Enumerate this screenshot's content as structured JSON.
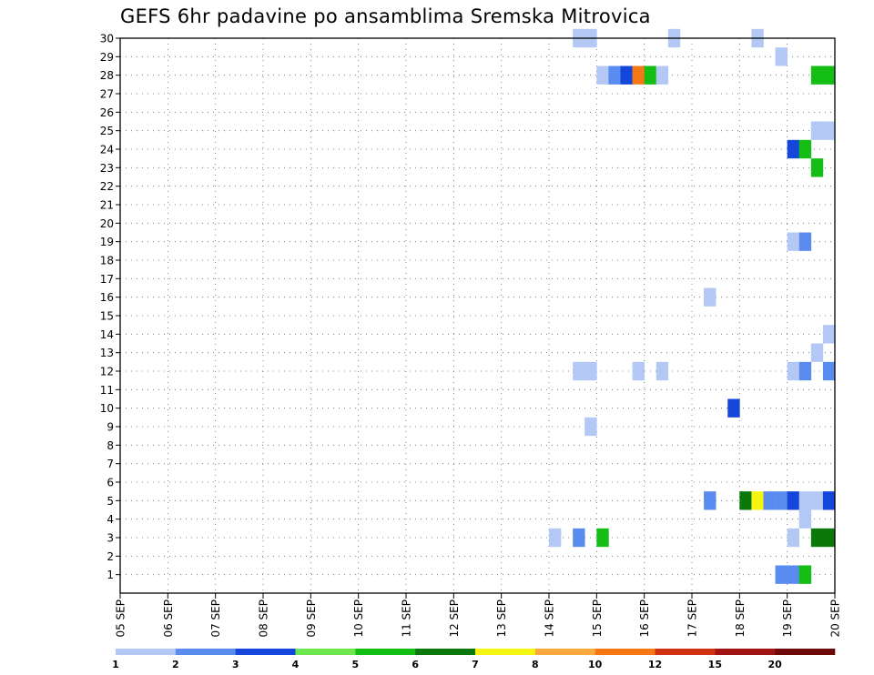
{
  "chart_data": {
    "type": "heatmap",
    "title": "GEFS 6hr padavine po ansamblima Sremska Mitrovica",
    "xlabel": "",
    "ylabel": "",
    "x_ticks": [
      "05 SEP",
      "06 SEP",
      "07 SEP",
      "08 SEP",
      "09 SEP",
      "10 SEP",
      "11 SEP",
      "12 SEP",
      "13 SEP",
      "14 SEP",
      "15 SEP",
      "16 SEP",
      "17 SEP",
      "18 SEP",
      "19 SEP",
      "20 SEP"
    ],
    "x_range_days": [
      0,
      15
    ],
    "y_ticks": [
      1,
      2,
      3,
      4,
      5,
      6,
      7,
      8,
      9,
      10,
      11,
      12,
      13,
      14,
      15,
      16,
      17,
      18,
      19,
      20,
      21,
      22,
      23,
      24,
      25,
      26,
      27,
      28,
      29,
      30
    ],
    "y_range": [
      0,
      30
    ],
    "grid": true,
    "legend_placement": "bottom",
    "legend": {
      "labels": [
        "1",
        "2",
        "3",
        "4",
        "5",
        "6",
        "7",
        "8",
        "10",
        "12",
        "15",
        "20"
      ],
      "colors": [
        "#b4c8f5",
        "#5a8cf0",
        "#1446dc",
        "#6ee650",
        "#14be14",
        "#0a780a",
        "#f5f514",
        "#faaa3c",
        "#f57814",
        "#d23214",
        "#a01414",
        "#6e0a0a"
      ]
    },
    "cells": [
      {
        "day": 9.5,
        "member": 30,
        "v": 1
      },
      {
        "day": 9.75,
        "member": 30,
        "v": 1
      },
      {
        "day": 11.5,
        "member": 30,
        "v": 1
      },
      {
        "day": 13.25,
        "member": 30,
        "v": 1
      },
      {
        "day": 13.75,
        "member": 29,
        "v": 1
      },
      {
        "day": 10.0,
        "member": 28,
        "v": 1
      },
      {
        "day": 10.25,
        "member": 28,
        "v": 2
      },
      {
        "day": 10.5,
        "member": 28,
        "v": 3
      },
      {
        "day": 10.75,
        "member": 28,
        "v": 10
      },
      {
        "day": 11.0,
        "member": 28,
        "v": 5
      },
      {
        "day": 11.25,
        "member": 28,
        "v": 1
      },
      {
        "day": 14.5,
        "member": 28,
        "v": 5
      },
      {
        "day": 14.75,
        "member": 28,
        "v": 5
      },
      {
        "day": 14.5,
        "member": 25,
        "v": 1
      },
      {
        "day": 14.75,
        "member": 25,
        "v": 1
      },
      {
        "day": 14.0,
        "member": 24,
        "v": 3
      },
      {
        "day": 14.25,
        "member": 24,
        "v": 5
      },
      {
        "day": 14.5,
        "member": 23,
        "v": 5
      },
      {
        "day": 14.0,
        "member": 19,
        "v": 1
      },
      {
        "day": 14.25,
        "member": 19,
        "v": 2
      },
      {
        "day": 12.25,
        "member": 16,
        "v": 1
      },
      {
        "day": 14.75,
        "member": 14,
        "v": 1
      },
      {
        "day": 14.5,
        "member": 13,
        "v": 1
      },
      {
        "day": 9.5,
        "member": 12,
        "v": 1
      },
      {
        "day": 9.75,
        "member": 12,
        "v": 1
      },
      {
        "day": 10.75,
        "member": 12,
        "v": 1
      },
      {
        "day": 11.25,
        "member": 12,
        "v": 1
      },
      {
        "day": 14.0,
        "member": 12,
        "v": 1
      },
      {
        "day": 14.25,
        "member": 12,
        "v": 2
      },
      {
        "day": 14.75,
        "member": 12,
        "v": 2
      },
      {
        "day": 12.75,
        "member": 10,
        "v": 3
      },
      {
        "day": 9.75,
        "member": 9,
        "v": 1
      },
      {
        "day": 12.25,
        "member": 5,
        "v": 2
      },
      {
        "day": 13.0,
        "member": 5,
        "v": 6
      },
      {
        "day": 13.25,
        "member": 5,
        "v": 7
      },
      {
        "day": 13.5,
        "member": 5,
        "v": 2
      },
      {
        "day": 13.75,
        "member": 5,
        "v": 2
      },
      {
        "day": 14.0,
        "member": 5,
        "v": 3
      },
      {
        "day": 14.25,
        "member": 5,
        "v": 1
      },
      {
        "day": 14.5,
        "member": 5,
        "v": 1
      },
      {
        "day": 14.75,
        "member": 5,
        "v": 3
      },
      {
        "day": 14.25,
        "member": 4,
        "v": 1
      },
      {
        "day": 9.0,
        "member": 3,
        "v": 1
      },
      {
        "day": 9.5,
        "member": 3,
        "v": 2
      },
      {
        "day": 10.0,
        "member": 3,
        "v": 5
      },
      {
        "day": 14.0,
        "member": 3,
        "v": 1
      },
      {
        "day": 14.5,
        "member": 3,
        "v": 6
      },
      {
        "day": 14.75,
        "member": 3,
        "v": 6
      },
      {
        "day": 13.75,
        "member": 1,
        "v": 2
      },
      {
        "day": 14.0,
        "member": 1,
        "v": 2
      },
      {
        "day": 14.25,
        "member": 1,
        "v": 5
      }
    ]
  }
}
